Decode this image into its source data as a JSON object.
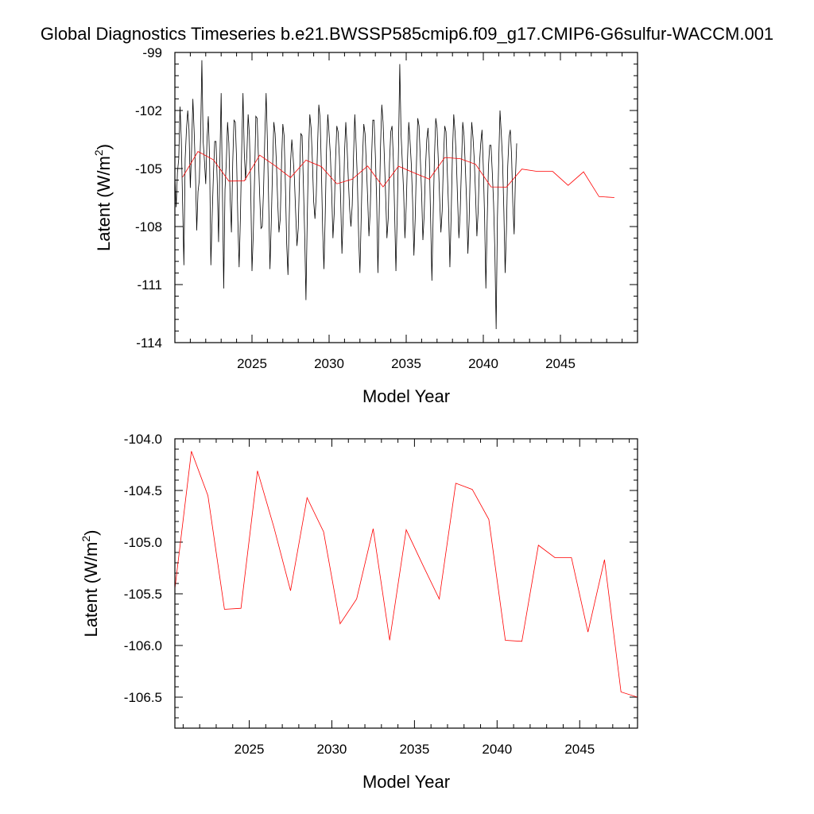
{
  "title": "Global Diagnostics Timeseries b.e21.BWSSP585cmip6.f09_g17.CMIP6-G6sulfur-WACCM.001",
  "chart_data": [
    {
      "type": "line",
      "xlabel": "Model Year",
      "ylabel": "Latent (W/m",
      "ylabel_sup": "2",
      "ylabel_close": ")",
      "xlim": [
        2020.0,
        2050.0
      ],
      "ylim": [
        -114,
        -99
      ],
      "xticks": [
        2025,
        2030,
        2035,
        2040,
        2045
      ],
      "yticks": [
        -99,
        -102,
        -105,
        -108,
        -111,
        -114
      ],
      "ytick_labels": [
        "-99",
        "-102",
        "-105",
        "-108",
        "-111",
        "-114"
      ],
      "series": [
        {
          "color": "#000000",
          "x_start": 2020.0,
          "x_step": 0.08333,
          "values": [
            -105.4,
            -107,
            -105.2,
            -104.5,
            -101.8,
            -103.5,
            -106.8,
            -110,
            -104.5,
            -103,
            -102,
            -103,
            -106,
            -104,
            -101.4,
            -103.1,
            -105.2,
            -108.2,
            -106.2,
            -105.6,
            -103.4,
            -99.4,
            -103.6,
            -104.6,
            -105.8,
            -103.5,
            -102.3,
            -104.5,
            -110,
            -107.5,
            -105.3,
            -103.6,
            -103.6,
            -105.8,
            -108.8,
            -104.6,
            -101.1,
            -106.2,
            -111.2,
            -106.1,
            -104.7,
            -102.6,
            -103.7,
            -106.5,
            -108.3,
            -104.7,
            -102.5,
            -102.6,
            -104.5,
            -107.7,
            -110.1,
            -107.5,
            -104,
            -101.1,
            -104.2,
            -105.6,
            -104.3,
            -102.2,
            -103.3,
            -106,
            -110.3,
            -108.4,
            -105.5,
            -102.3,
            -102.4,
            -104.4,
            -106.4,
            -108.1,
            -108,
            -106.1,
            -103.3,
            -101.1,
            -103.6,
            -106.8,
            -110.2,
            -107.8,
            -105,
            -102.6,
            -103.2,
            -104.7,
            -106.7,
            -108.3,
            -107.6,
            -104.7,
            -102.7,
            -103.3,
            -105.8,
            -108.9,
            -110.5,
            -107.5,
            -104.7,
            -103.5,
            -104.4,
            -105.5,
            -107.3,
            -109,
            -108.1,
            -105.4,
            -103.2,
            -103.3,
            -105.8,
            -108.4,
            -111.8,
            -107.6,
            -104.2,
            -102.2,
            -102.9,
            -104.6,
            -106.7,
            -107.6,
            -106.4,
            -103.9,
            -101.7,
            -102.4,
            -105,
            -108.2,
            -110.2,
            -107.4,
            -104,
            -102.2,
            -103.2,
            -104.3,
            -106.2,
            -108.6,
            -107.3,
            -104.6,
            -102.8,
            -103.1,
            -104.4,
            -106.6,
            -109.4,
            -107.4,
            -104.2,
            -102.6,
            -103.9,
            -105.6,
            -107.1,
            -108,
            -106.9,
            -104.4,
            -102.2,
            -103.7,
            -105.6,
            -108.5,
            -110.4,
            -107.5,
            -104.5,
            -102.7,
            -103.2,
            -104.8,
            -106.5,
            -108.5,
            -107.2,
            -104.6,
            -102.5,
            -102.5,
            -104.3,
            -106.6,
            -110.4,
            -107.3,
            -103.9,
            -101.7,
            -102.6,
            -104.4,
            -106.4,
            -108.6,
            -107.6,
            -104.7,
            -103.1,
            -102.8,
            -104.5,
            -107.3,
            -110.3,
            -107.4,
            -104,
            -99.6,
            -103.2,
            -104.7,
            -106.2,
            -108.6,
            -107,
            -104.6,
            -102.6,
            -103.6,
            -104.8,
            -106.7,
            -109.5,
            -107.6,
            -104.7,
            -102.4,
            -102.8,
            -104.5,
            -106.3,
            -108.7,
            -107.4,
            -105,
            -103.5,
            -102.9,
            -104.5,
            -107.6,
            -110.8,
            -107.4,
            -104.4,
            -102.4,
            -102.9,
            -104.6,
            -106.5,
            -108.3,
            -107.2,
            -104.5,
            -102.8,
            -103.1,
            -105.2,
            -107.1,
            -110.1,
            -107.4,
            -104.2,
            -102.2,
            -103.1,
            -104.5,
            -106.6,
            -108.6,
            -107.3,
            -104.9,
            -102.6,
            -103.3,
            -104.9,
            -106.7,
            -109.4,
            -107.6,
            -104.6,
            -102.6,
            -103.4,
            -104.6,
            -106.4,
            -108.5,
            -107.2,
            -104.8,
            -103.7,
            -103,
            -104.9,
            -107.5,
            -111.2,
            -107.8,
            -104.9,
            -103.8,
            -103.8,
            -105.2,
            -106.8,
            -109.3,
            -113.3,
            -107.5,
            -104.6,
            -102,
            -103.2,
            -104.6,
            -107.2,
            -110.4,
            -108.2,
            -104.9,
            -103.4,
            -103,
            -104.3,
            -106.9,
            -108.4,
            -105.5,
            -103.7
          ]
        },
        {
          "color": "#ff0000",
          "x_start": 2020.5,
          "x_step": 1.0,
          "values": [
            -105.45,
            -104.12,
            -104.55,
            -105.65,
            -105.64,
            -104.31,
            -104.86,
            -105.47,
            -104.57,
            -104.9,
            -105.79,
            -105.55,
            -104.87,
            -105.95,
            -104.88,
            -105.22,
            -105.55,
            -104.43,
            -104.49,
            -104.78,
            -105.95,
            -105.96,
            -105.03,
            -105.15,
            -105.15,
            -105.87,
            -105.17,
            -106.45,
            -106.5
          ]
        }
      ]
    },
    {
      "type": "line",
      "xlabel": "Model Year",
      "ylabel": "Latent (W/m",
      "ylabel_sup": "2",
      "ylabel_close": ")",
      "xlim": [
        2020.5,
        2048.5
      ],
      "ylim": [
        -106.8,
        -104.0
      ],
      "xticks": [
        2025,
        2030,
        2035,
        2040,
        2045
      ],
      "yticks": [
        -104.0,
        -104.5,
        -105.0,
        -105.5,
        -106.0,
        -106.5
      ],
      "ytick_labels": [
        "-104.0",
        "-104.5",
        "-105.0",
        "-105.5",
        "-106.0",
        "-106.5"
      ],
      "series": [
        {
          "color": "#ff0000",
          "x_start": 2020.5,
          "x_step": 1.0,
          "values": [
            -105.45,
            -104.12,
            -104.55,
            -105.65,
            -105.64,
            -104.31,
            -104.86,
            -105.47,
            -104.57,
            -104.9,
            -105.79,
            -105.55,
            -104.87,
            -105.95,
            -104.88,
            -105.22,
            -105.55,
            -104.43,
            -104.49,
            -104.78,
            -105.95,
            -105.96,
            -105.03,
            -105.15,
            -105.15,
            -105.87,
            -105.17,
            -106.45,
            -106.5
          ]
        }
      ]
    }
  ]
}
